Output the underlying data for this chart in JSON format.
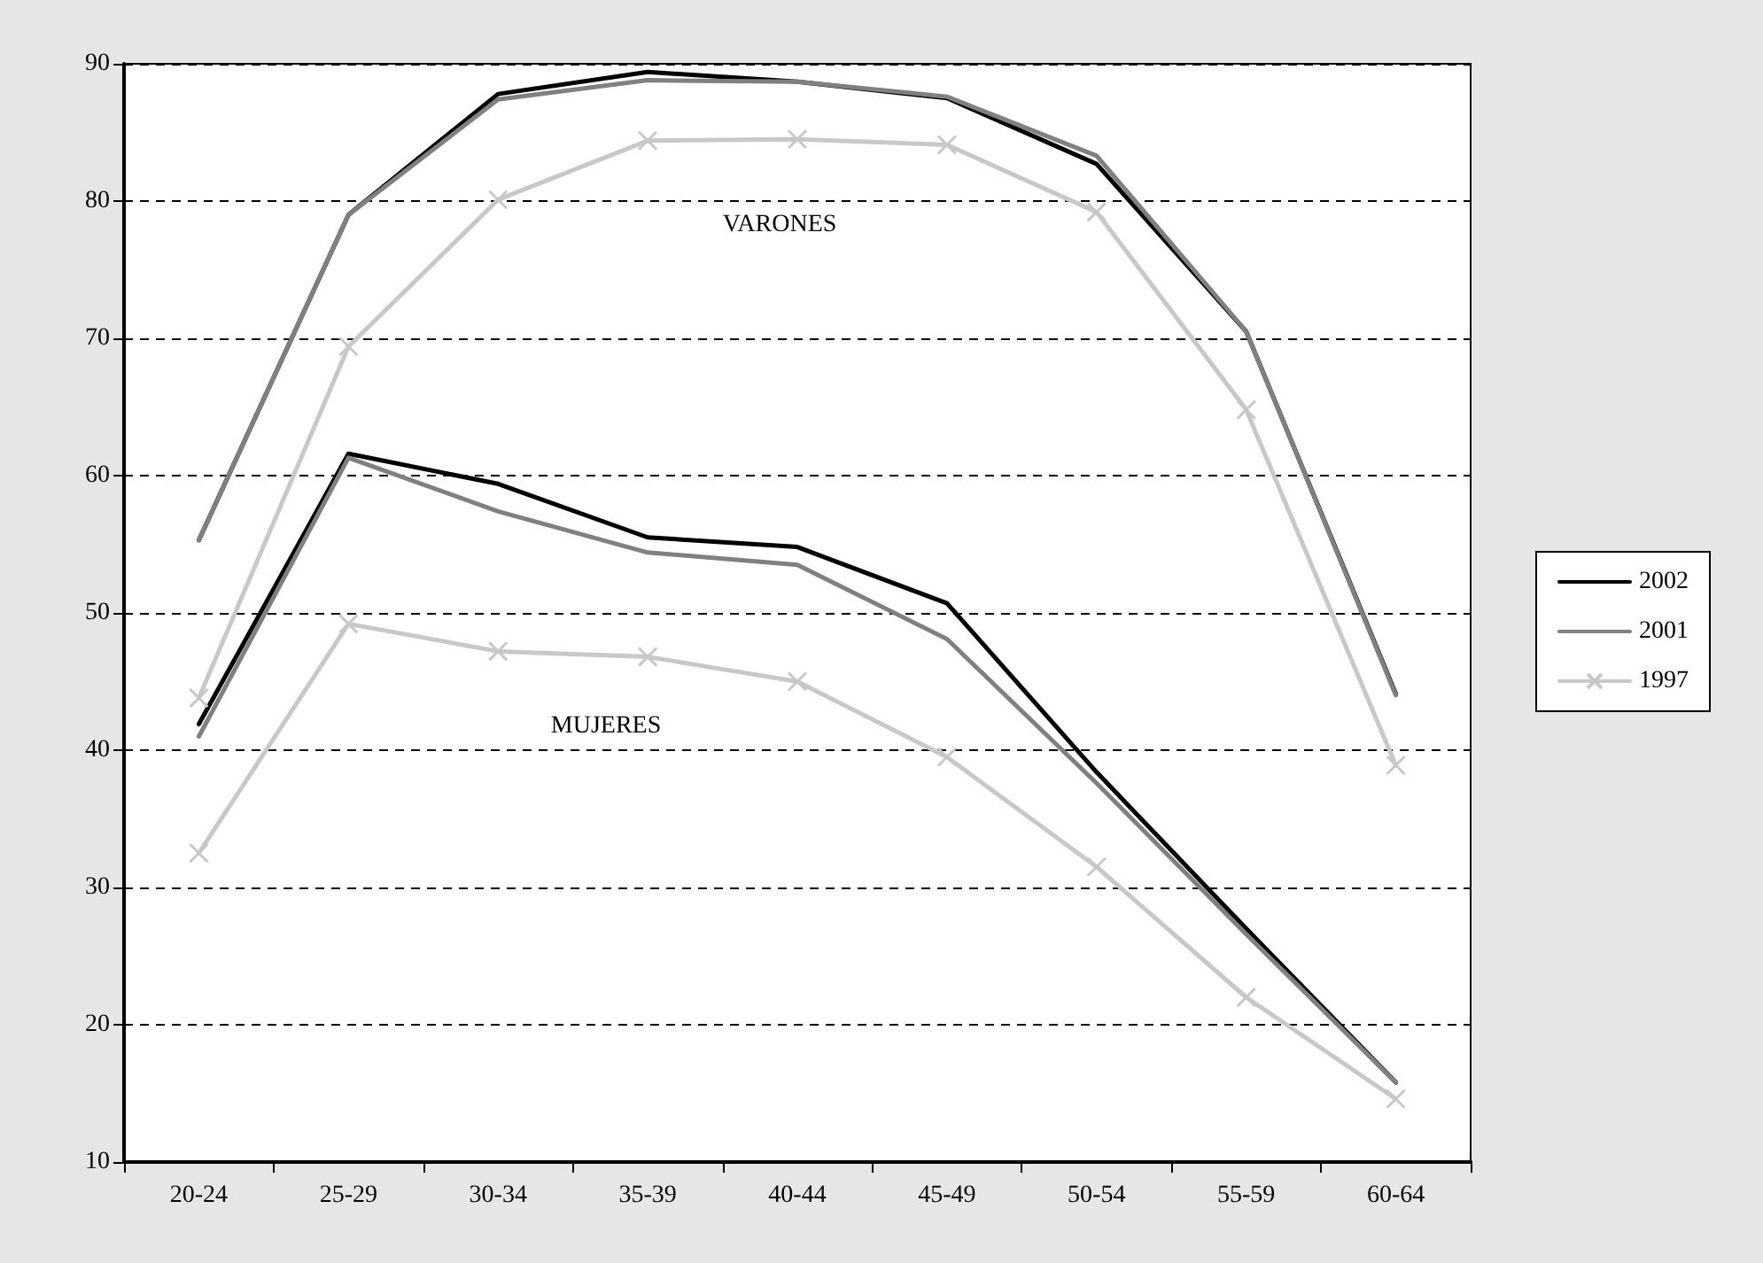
{
  "chart_data": {
    "type": "line",
    "categories": [
      "20-24",
      "25-29",
      "30-34",
      "35-39",
      "40-44",
      "45-49",
      "50-54",
      "55-59",
      "60-64"
    ],
    "series": [
      {
        "name": "2002",
        "color": "#000000",
        "marker": "none",
        "values": [
          55.3,
          79.0,
          87.8,
          89.4,
          88.7,
          87.5,
          82.7,
          70.5,
          44.1
        ]
      },
      {
        "name": "2001",
        "color": "#808080",
        "marker": "none",
        "values": [
          55.3,
          79.0,
          87.4,
          88.8,
          88.7,
          87.6,
          83.3,
          70.5,
          44.0
        ]
      },
      {
        "name": "1997",
        "color": "#c8c8c8",
        "marker": "cross",
        "values": [
          43.8,
          69.4,
          80.1,
          84.4,
          84.5,
          84.1,
          79.2,
          64.8,
          38.9
        ]
      },
      {
        "color": "#000000",
        "marker": "none",
        "values": [
          41.9,
          61.6,
          59.4,
          55.5,
          54.8,
          50.7,
          38.4,
          27.0,
          15.8
        ]
      },
      {
        "color": "#808080",
        "marker": "none",
        "values": [
          41.0,
          61.3,
          57.4,
          54.4,
          53.5,
          48.1,
          37.6,
          26.6,
          15.8
        ]
      },
      {
        "color": "#c8c8c8",
        "marker": "cross",
        "values": [
          32.5,
          49.2,
          47.2,
          46.8,
          45.0,
          39.5,
          31.5,
          22.0,
          14.6
        ]
      }
    ],
    "ylim": [
      10,
      90
    ],
    "yticks": [
      10,
      20,
      30,
      40,
      50,
      60,
      70,
      80,
      90
    ],
    "grid": "y",
    "legend": "right",
    "line_style": "solid",
    "annotations": [
      "VARONES",
      "MUJERES"
    ]
  }
}
